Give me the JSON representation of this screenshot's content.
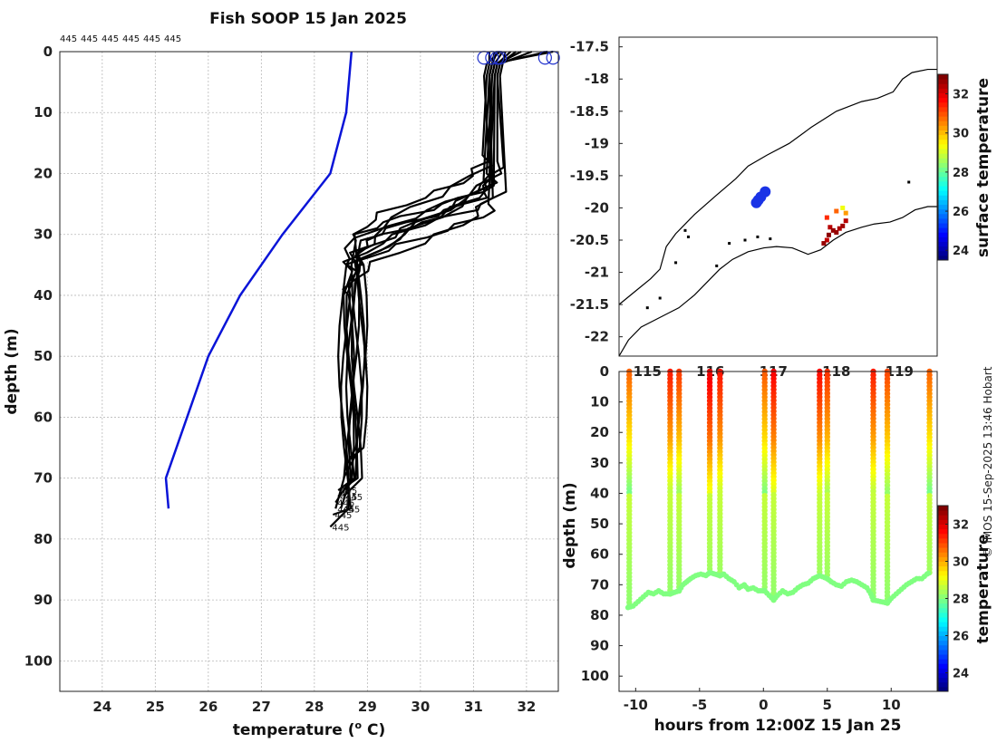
{
  "figure": {
    "title": "Fish SOOP 15 Jan 2025",
    "credit": "© IMOS 15-Sep-2025 13:46 Hobart"
  },
  "chart_data": [
    {
      "id": "profiles",
      "type": "line",
      "xlabel": "temperature (o C)",
      "xlabel_main": "temperature (",
      "xlabel_sup": "o",
      "xlabel_tail": " C)",
      "ylabel": "depth (m)",
      "xlim": [
        23.2,
        32.6
      ],
      "ylim": [
        0,
        105
      ],
      "y_reversed": true,
      "grid": true,
      "xticks": [
        24,
        25,
        26,
        27,
        28,
        29,
        30,
        31,
        32
      ],
      "yticks": [
        0,
        10,
        20,
        30,
        40,
        50,
        60,
        70,
        80,
        90,
        100
      ],
      "top_labels": [
        "445",
        "445",
        "445",
        "445",
        "445",
        "445"
      ],
      "profile_label": "445",
      "colors": {
        "climatology": "#0a14d8",
        "profile": "#000000",
        "surface_marker": "#2233cc"
      },
      "climatology": {
        "depth": [
          0,
          10,
          20,
          30,
          40,
          50,
          60,
          70,
          75
        ],
        "temperature": [
          28.7,
          28.6,
          28.3,
          27.4,
          26.6,
          26.0,
          25.6,
          25.2,
          25.25
        ]
      },
      "profiles": [
        {
          "surface_t": 32.1,
          "mixed_t": 31.45,
          "thermo_top": 18,
          "thermo_bot": 38,
          "deep_t": 28.7,
          "max_depth": 72
        },
        {
          "surface_t": 32.4,
          "mixed_t": 31.35,
          "thermo_top": 20,
          "thermo_bot": 35,
          "deep_t": 28.8,
          "max_depth": 73
        },
        {
          "surface_t": 32.5,
          "mixed_t": 31.3,
          "thermo_top": 21,
          "thermo_bot": 36,
          "deep_t": 28.65,
          "max_depth": 74
        },
        {
          "surface_t": 31.9,
          "mixed_t": 31.4,
          "thermo_top": 22,
          "thermo_bot": 32,
          "deep_t": 28.9,
          "max_depth": 67
        },
        {
          "surface_t": 31.5,
          "mixed_t": 31.2,
          "thermo_top": 18,
          "thermo_bot": 30,
          "deep_t": 28.85,
          "max_depth": 68
        },
        {
          "surface_t": 31.6,
          "mixed_t": 31.5,
          "thermo_top": 23,
          "thermo_bot": 33,
          "deep_t": 28.75,
          "max_depth": 75
        },
        {
          "surface_t": 31.4,
          "mixed_t": 31.3,
          "thermo_top": 20,
          "thermo_bot": 38,
          "deep_t": 28.6,
          "max_depth": 76
        },
        {
          "surface_t": 31.3,
          "mixed_t": 31.25,
          "thermo_top": 17,
          "thermo_bot": 34,
          "deep_t": 28.55,
          "max_depth": 78
        },
        {
          "surface_t": 31.7,
          "mixed_t": 31.4,
          "thermo_top": 25,
          "thermo_bot": 36,
          "deep_t": 28.7,
          "max_depth": 73
        },
        {
          "surface_t": 31.55,
          "mixed_t": 31.35,
          "thermo_top": 21,
          "thermo_bot": 31,
          "deep_t": 28.8,
          "max_depth": 70
        },
        {
          "surface_t": 31.45,
          "mixed_t": 31.3,
          "thermo_top": 24,
          "thermo_bot": 39,
          "deep_t": 28.65,
          "max_depth": 75
        },
        {
          "surface_t": 31.8,
          "mixed_t": 31.45,
          "thermo_top": 19,
          "thermo_bot": 33,
          "deep_t": 28.9,
          "max_depth": 71
        }
      ],
      "surface_markers": [
        31.2,
        31.35,
        31.45,
        31.5,
        32.35,
        32.5
      ]
    },
    {
      "id": "map",
      "type": "scatter",
      "colorbar_label": "surface temperature",
      "colorbar_ticks": [
        24,
        26,
        28,
        30,
        32
      ],
      "colorbar_range": [
        23.5,
        33.0
      ],
      "lon_range": [
        114.55,
        119.6
      ],
      "lat_range": [
        -22.3,
        -17.35
      ],
      "xticks": [
        "115",
        "116",
        "117",
        "118",
        "119"
      ],
      "yticks": [
        "-17.5",
        "-18",
        "-18.5",
        "-19",
        "-19.5",
        "-20",
        "-20.5",
        "-21",
        "-21.5",
        "-22"
      ],
      "coast_color": "#000000",
      "shelf_edge": [
        [
          114.55,
          -21.5
        ],
        [
          114.8,
          -21.3
        ],
        [
          115.05,
          -21.1
        ],
        [
          115.2,
          -20.95
        ],
        [
          115.3,
          -20.6
        ],
        [
          115.45,
          -20.4
        ],
        [
          115.75,
          -20.1
        ],
        [
          116.1,
          -19.8
        ],
        [
          116.4,
          -19.55
        ],
        [
          116.6,
          -19.35
        ],
        [
          116.9,
          -19.18
        ],
        [
          117.25,
          -19.0
        ],
        [
          117.6,
          -18.75
        ],
        [
          118.0,
          -18.5
        ],
        [
          118.4,
          -18.35
        ],
        [
          118.65,
          -18.3
        ],
        [
          118.9,
          -18.2
        ],
        [
          119.05,
          -18.0
        ],
        [
          119.2,
          -17.9
        ],
        [
          119.45,
          -17.85
        ],
        [
          119.6,
          -17.85
        ]
      ],
      "coastline": [
        [
          114.55,
          -22.3
        ],
        [
          114.7,
          -22.05
        ],
        [
          114.9,
          -21.85
        ],
        [
          115.1,
          -21.75
        ],
        [
          115.3,
          -21.65
        ],
        [
          115.5,
          -21.55
        ],
        [
          115.75,
          -21.35
        ],
        [
          115.95,
          -21.15
        ],
        [
          116.15,
          -20.95
        ],
        [
          116.35,
          -20.8
        ],
        [
          116.6,
          -20.68
        ],
        [
          116.85,
          -20.62
        ],
        [
          117.05,
          -20.6
        ],
        [
          117.3,
          -20.62
        ],
        [
          117.55,
          -20.72
        ],
        [
          117.75,
          -20.65
        ],
        [
          117.95,
          -20.5
        ],
        [
          118.15,
          -20.38
        ],
        [
          118.4,
          -20.3
        ],
        [
          118.6,
          -20.25
        ],
        [
          118.85,
          -20.22
        ],
        [
          119.05,
          -20.15
        ],
        [
          119.25,
          -20.03
        ],
        [
          119.45,
          -19.98
        ],
        [
          119.6,
          -19.98
        ]
      ],
      "islands": [
        [
          115.6,
          -20.35
        ],
        [
          115.65,
          -20.45
        ],
        [
          115.45,
          -20.85
        ],
        [
          115.2,
          -21.4
        ],
        [
          115.0,
          -21.55
        ],
        [
          116.1,
          -20.9
        ],
        [
          116.3,
          -20.55
        ],
        [
          116.55,
          -20.5
        ],
        [
          116.75,
          -20.45
        ],
        [
          116.95,
          -20.48
        ],
        [
          119.15,
          -19.6
        ]
      ],
      "positions": [
        {
          "lon": 116.73,
          "lat": -19.92
        },
        {
          "lon": 116.76,
          "lat": -19.88
        },
        {
          "lon": 116.8,
          "lat": -19.83
        },
        {
          "lon": 116.87,
          "lat": -19.75
        }
      ],
      "position_color": "#1a33e6",
      "sst_points": [
        {
          "lon": 118.0,
          "lat": -20.05,
          "t": 31.0
        },
        {
          "lon": 118.1,
          "lat": -20.0,
          "t": 29.5
        },
        {
          "lon": 118.15,
          "lat": -20.08,
          "t": 30.5
        },
        {
          "lon": 117.85,
          "lat": -20.15,
          "t": 31.5
        },
        {
          "lon": 117.9,
          "lat": -20.3,
          "t": 32.5
        },
        {
          "lon": 117.95,
          "lat": -20.35,
          "t": 32.8
        },
        {
          "lon": 118.0,
          "lat": -20.38,
          "t": 32.8
        },
        {
          "lon": 118.05,
          "lat": -20.32,
          "t": 32.6
        },
        {
          "lon": 118.1,
          "lat": -20.28,
          "t": 32.7
        },
        {
          "lon": 117.88,
          "lat": -20.42,
          "t": 32.9
        },
        {
          "lon": 117.85,
          "lat": -20.5,
          "t": 32.4
        },
        {
          "lon": 117.8,
          "lat": -20.55,
          "t": 32.8
        },
        {
          "lon": 118.15,
          "lat": -20.2,
          "t": 32.5
        }
      ]
    },
    {
      "id": "section",
      "type": "scatter",
      "xlabel": "hours from 12:00Z 15 Jan 25",
      "ylabel": "depth (m)",
      "colorbar_label": "temperature",
      "colorbar_ticks": [
        24,
        26,
        28,
        30,
        32
      ],
      "colorbar_range": [
        23.0,
        33.0
      ],
      "xlim": [
        -11.3,
        13.6
      ],
      "ylim": [
        0,
        105
      ],
      "y_reversed": true,
      "xticks": [
        -10,
        -5,
        0,
        5,
        10
      ],
      "yticks": [
        0,
        10,
        20,
        30,
        40,
        50,
        60,
        70,
        80,
        90,
        100
      ],
      "casts": [
        {
          "hour": -10.5,
          "max_depth": 77,
          "surface_t": 30.8
        },
        {
          "hour": -7.3,
          "max_depth": 73,
          "surface_t": 31.5
        },
        {
          "hour": -6.6,
          "max_depth": 72,
          "surface_t": 31.2
        },
        {
          "hour": -4.2,
          "max_depth": 66,
          "surface_t": 32.0
        },
        {
          "hour": -3.4,
          "max_depth": 67,
          "surface_t": 31.6
        },
        {
          "hour": 0.1,
          "max_depth": 72,
          "surface_t": 30.9
        },
        {
          "hour": 0.8,
          "max_depth": 75,
          "surface_t": 31.8
        },
        {
          "hour": 4.4,
          "max_depth": 67,
          "surface_t": 31.7
        },
        {
          "hour": 5.0,
          "max_depth": 68,
          "surface_t": 31.3
        },
        {
          "hour": 8.6,
          "max_depth": 75,
          "surface_t": 31.5
        },
        {
          "hour": 9.7,
          "max_depth": 76,
          "surface_t": 31.1
        },
        {
          "hour": 13.0,
          "max_depth": 66,
          "surface_t": 30.8
        }
      ],
      "tow_track": [
        [
          -10.6,
          77.5
        ],
        [
          -10.2,
          77
        ],
        [
          -9.8,
          75.5
        ],
        [
          -9.4,
          74
        ],
        [
          -9.0,
          72.5
        ],
        [
          -8.6,
          73
        ],
        [
          -8.2,
          72
        ],
        [
          -7.8,
          73
        ],
        [
          -7.3,
          73
        ],
        [
          -6.6,
          72
        ],
        [
          -6.3,
          70
        ],
        [
          -6.0,
          69
        ],
        [
          -5.7,
          68
        ],
        [
          -5.3,
          67
        ],
        [
          -4.9,
          66.5
        ],
        [
          -4.5,
          67
        ],
        [
          -4.2,
          66
        ],
        [
          -3.4,
          67
        ],
        [
          -3.1,
          66.5
        ],
        [
          -2.7,
          68
        ],
        [
          -2.3,
          69
        ],
        [
          -1.9,
          71
        ],
        [
          -1.5,
          70
        ],
        [
          -1.2,
          71.5
        ],
        [
          -0.8,
          71
        ],
        [
          -0.4,
          72
        ],
        [
          0.1,
          72
        ],
        [
          0.8,
          75
        ],
        [
          1.1,
          73.5
        ],
        [
          1.5,
          72
        ],
        [
          1.9,
          73
        ],
        [
          2.3,
          72.5
        ],
        [
          2.7,
          71
        ],
        [
          3.1,
          70
        ],
        [
          3.5,
          69.5
        ],
        [
          3.9,
          68
        ],
        [
          4.4,
          67
        ],
        [
          5.0,
          68
        ],
        [
          5.3,
          69
        ],
        [
          5.7,
          70
        ],
        [
          6.1,
          70.5
        ],
        [
          6.5,
          69
        ],
        [
          6.9,
          68.5
        ],
        [
          7.3,
          69
        ],
        [
          7.7,
          70
        ],
        [
          8.1,
          71
        ],
        [
          8.4,
          73
        ],
        [
          8.6,
          75
        ],
        [
          9.7,
          76
        ],
        [
          10.0,
          74.5
        ],
        [
          10.4,
          73
        ],
        [
          10.8,
          71.5
        ],
        [
          11.2,
          70
        ],
        [
          11.6,
          69
        ],
        [
          12.0,
          68
        ],
        [
          12.4,
          68
        ],
        [
          12.8,
          66.5
        ],
        [
          13.0,
          66
        ]
      ],
      "track_temperature": 28.6
    }
  ]
}
